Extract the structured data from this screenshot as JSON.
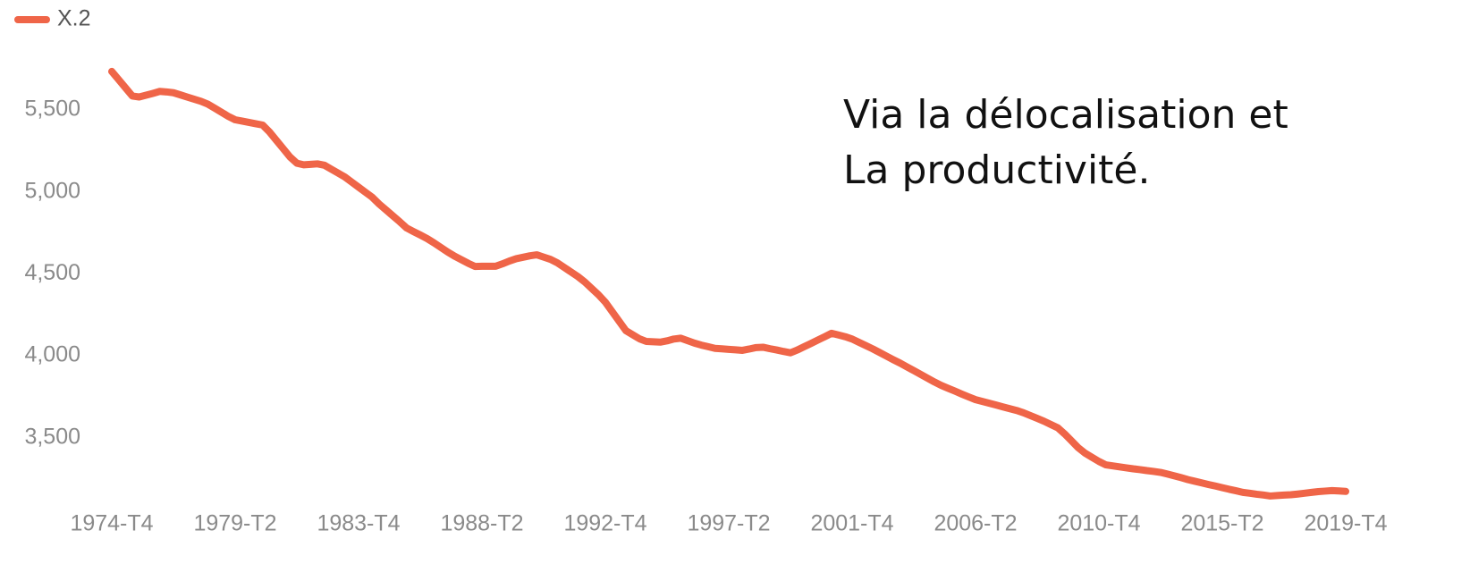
{
  "chart_data": {
    "type": "line",
    "annotation": [
      "Via la délocalisation et",
      "La productivité."
    ],
    "categories": [
      "1974-T4",
      null,
      null,
      null,
      null,
      null,
      null,
      null,
      null,
      null,
      null,
      null,
      null,
      null,
      null,
      null,
      null,
      null,
      "1979-T2",
      null,
      null,
      null,
      null,
      null,
      null,
      null,
      null,
      null,
      null,
      null,
      null,
      null,
      null,
      null,
      null,
      null,
      "1983-T4",
      null,
      null,
      null,
      null,
      null,
      null,
      null,
      null,
      null,
      null,
      null,
      null,
      null,
      null,
      null,
      null,
      null,
      "1988-T2",
      null,
      null,
      null,
      null,
      null,
      null,
      null,
      null,
      null,
      null,
      null,
      null,
      null,
      null,
      null,
      null,
      null,
      "1992-T4",
      null,
      null,
      null,
      null,
      null,
      null,
      null,
      null,
      null,
      null,
      null,
      null,
      null,
      null,
      null,
      null,
      null,
      "1997-T2",
      null,
      null,
      null,
      null,
      null,
      null,
      null,
      null,
      null,
      null,
      null,
      null,
      null,
      null,
      null,
      null,
      null,
      "2001-T4",
      null,
      null,
      null,
      null,
      null,
      null,
      null,
      null,
      null,
      null,
      null,
      null,
      null,
      null,
      null,
      null,
      null,
      "2006-T2",
      null,
      null,
      null,
      null,
      null,
      null,
      null,
      null,
      null,
      null,
      null,
      null,
      null,
      null,
      null,
      null,
      null,
      "2010-T4",
      null,
      null,
      null,
      null,
      null,
      null,
      null,
      null,
      null,
      null,
      null,
      null,
      null,
      null,
      null,
      null,
      null,
      "2015-T2",
      null,
      null,
      null,
      null,
      null,
      null,
      null,
      null,
      null,
      null,
      null,
      null,
      null,
      null,
      null,
      null,
      null,
      "2019-T4"
    ],
    "series": [
      {
        "name": "X.2",
        "color": "#ef6548",
        "values": [
          5735,
          5685,
          5635,
          5585,
          5579,
          5590,
          5601,
          5613,
          5610,
          5605,
          5592,
          5579,
          5566,
          5553,
          5536,
          5511,
          5486,
          5461,
          5440,
          5432,
          5424,
          5416,
          5408,
          5366,
          5315,
          5264,
          5213,
          5175,
          5165,
          5168,
          5171,
          5163,
          5139,
          5115,
          5091,
          5060,
          5029,
          4998,
          4967,
          4926,
          4890,
          4854,
          4818,
          4780,
          4758,
          4737,
          4715,
          4689,
          4661,
          4633,
          4608,
          4586,
          4564,
          4545,
          4546,
          4546,
          4546,
          4561,
          4578,
          4592,
          4601,
          4610,
          4616,
          4602,
          4588,
          4567,
          4539,
          4511,
          4483,
          4450,
          4411,
          4372,
          4327,
          4269,
          4211,
          4153,
          4128,
          4103,
          4087,
          4085,
          4083,
          4091,
          4102,
          4107,
          4092,
          4077,
          4065,
          4055,
          4045,
          4042,
          4039,
          4036,
          4033,
          4041,
          4050,
          4052,
          4043,
          4035,
          4026,
          4018,
          4035,
          4055,
          4075,
          4096,
          4116,
          4137,
          4127,
          4116,
          4102,
          4082,
          4062,
          4042,
          4020,
          3998,
          3976,
          3955,
          3932,
          3909,
          3886,
          3863,
          3840,
          3819,
          3801,
          3784,
          3766,
          3749,
          3732,
          3721,
          3710,
          3699,
          3688,
          3677,
          3666,
          3652,
          3635,
          3618,
          3600,
          3580,
          3560,
          3523,
          3481,
          3438,
          3405,
          3380,
          3355,
          3334,
          3328,
          3322,
          3316,
          3310,
          3305,
          3299,
          3294,
          3288,
          3278,
          3267,
          3256,
          3244,
          3234,
          3224,
          3214,
          3205,
          3195,
          3185,
          3176,
          3166,
          3161,
          3155,
          3150,
          3144,
          3147,
          3150,
          3152,
          3156,
          3161,
          3166,
          3171,
          3174,
          3177,
          3175,
          3172
        ]
      }
    ],
    "ylim": [
      3100,
      5800
    ],
    "yticks": [
      {
        "value": 3500,
        "label": "3,500"
      },
      {
        "value": 4000,
        "label": "4,000"
      },
      {
        "value": 4500,
        "label": "4,500"
      },
      {
        "value": 5000,
        "label": "5,000"
      },
      {
        "value": 5500,
        "label": "5,500"
      }
    ],
    "grid": false,
    "legend": "top-left"
  }
}
